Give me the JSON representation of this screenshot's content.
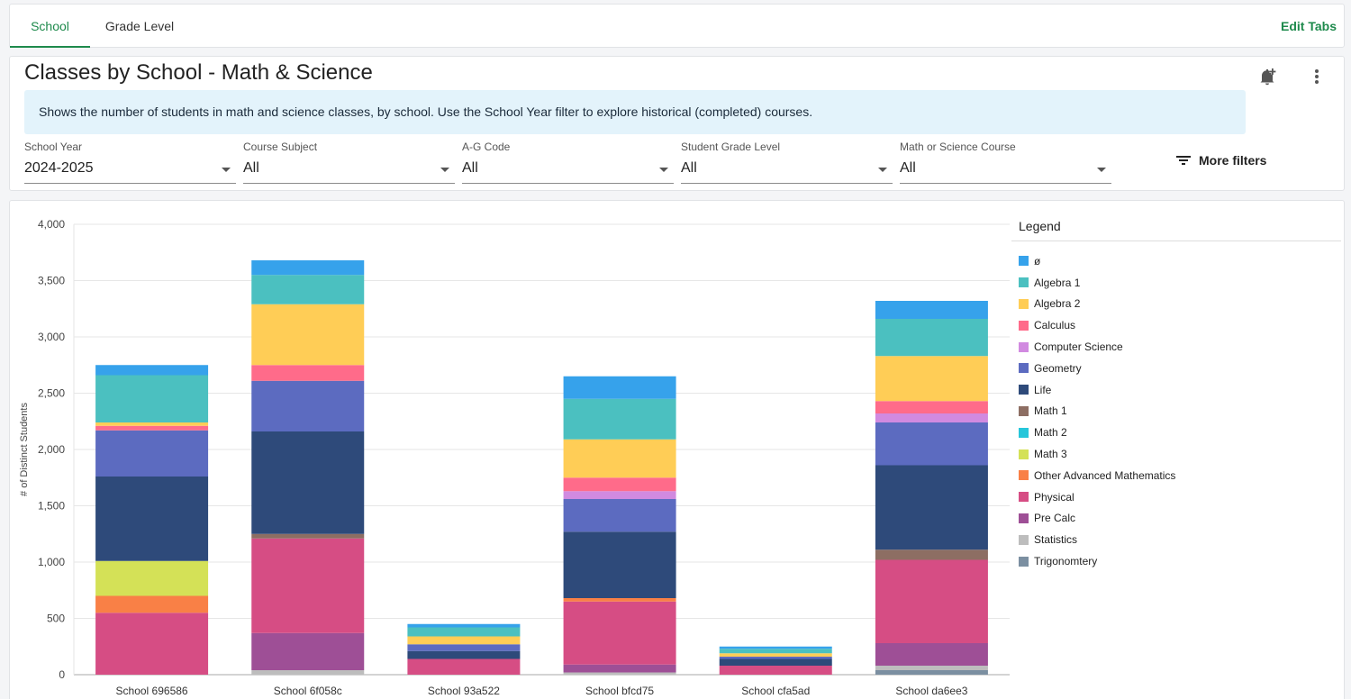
{
  "tabs": [
    {
      "label": "School",
      "active": true
    },
    {
      "label": "Grade Level",
      "active": false
    }
  ],
  "edit_tabs_label": "Edit Tabs",
  "header": {
    "title": "Classes by School - Math & Science",
    "info": "Shows the number of students in math and science classes, by school. Use the School Year filter to explore historical (completed) courses."
  },
  "filters": [
    {
      "label": "School Year",
      "value": "2024-2025"
    },
    {
      "label": "Course Subject",
      "value": "All"
    },
    {
      "label": "A-G Code",
      "value": "All"
    },
    {
      "label": "Student Grade Level",
      "value": "All"
    },
    {
      "label": "Math or Science Course",
      "value": "All"
    }
  ],
  "more_filters_label": "More filters",
  "icons": {
    "bell": "bell-plus-icon",
    "menu": "kebab-menu-icon",
    "filter": "filter-lines-icon"
  },
  "chart_data": {
    "type": "bar",
    "stacked": true,
    "ylabel": "# of Distinct Students",
    "ylim": [
      0,
      4000
    ],
    "yticks": [
      "0",
      "500",
      "1,000",
      "1,500",
      "2,000",
      "2,500",
      "3,000",
      "3,500",
      "4,000"
    ],
    "categories": [
      "School 696586",
      "School 6f058c",
      "School 93a522",
      "School bfcd75",
      "School cfa5ad",
      "School da6ee3"
    ],
    "legend_title": "Legend",
    "legend_position": "right",
    "series": [
      {
        "name": "Trigonomtery",
        "color": "#7b8fa1",
        "values": [
          0,
          0,
          0,
          0,
          0,
          40
        ]
      },
      {
        "name": "Statistics",
        "color": "#bdbdbd",
        "values": [
          0,
          40,
          0,
          20,
          0,
          40
        ]
      },
      {
        "name": "Pre Calc",
        "color": "#9e4f96",
        "values": [
          0,
          330,
          0,
          70,
          0,
          200
        ]
      },
      {
        "name": "Physical",
        "color": "#d64d84",
        "values": [
          550,
          840,
          140,
          560,
          80,
          740
        ]
      },
      {
        "name": "Other Advanced Mathematics",
        "color": "#f98046",
        "values": [
          150,
          0,
          0,
          30,
          0,
          0
        ]
      },
      {
        "name": "Math 3",
        "color": "#d4e157",
        "values": [
          310,
          0,
          0,
          0,
          0,
          0
        ]
      },
      {
        "name": "Math 2",
        "color": "#26c6da",
        "values": [
          0,
          0,
          0,
          0,
          0,
          0
        ]
      },
      {
        "name": "Math 1",
        "color": "#8d6e63",
        "values": [
          0,
          40,
          0,
          0,
          0,
          90
        ]
      },
      {
        "name": "Life",
        "color": "#2e4a7a",
        "values": [
          750,
          910,
          70,
          590,
          60,
          750
        ]
      },
      {
        "name": "Geometry",
        "color": "#5c6bc0",
        "values": [
          410,
          450,
          60,
          290,
          20,
          380
        ]
      },
      {
        "name": "Computer Science",
        "color": "#d18ae0",
        "values": [
          0,
          0,
          0,
          70,
          0,
          80
        ]
      },
      {
        "name": "Calculus",
        "color": "#ff6b8a",
        "values": [
          40,
          140,
          0,
          120,
          0,
          110
        ]
      },
      {
        "name": "Algebra 2",
        "color": "#ffcd56",
        "values": [
          30,
          540,
          70,
          340,
          30,
          400
        ]
      },
      {
        "name": "Algebra 1",
        "color": "#4bc0c0",
        "values": [
          420,
          260,
          80,
          360,
          40,
          330
        ]
      },
      {
        "name": "ø",
        "color": "#36a2eb",
        "values": [
          90,
          130,
          30,
          200,
          20,
          160
        ]
      }
    ],
    "legend_order": [
      "ø",
      "Algebra 1",
      "Algebra 2",
      "Calculus",
      "Computer Science",
      "Geometry",
      "Life",
      "Math 1",
      "Math 2",
      "Math 3",
      "Other Advanced Mathematics",
      "Physical",
      "Pre Calc",
      "Statistics",
      "Trigonomtery"
    ]
  }
}
